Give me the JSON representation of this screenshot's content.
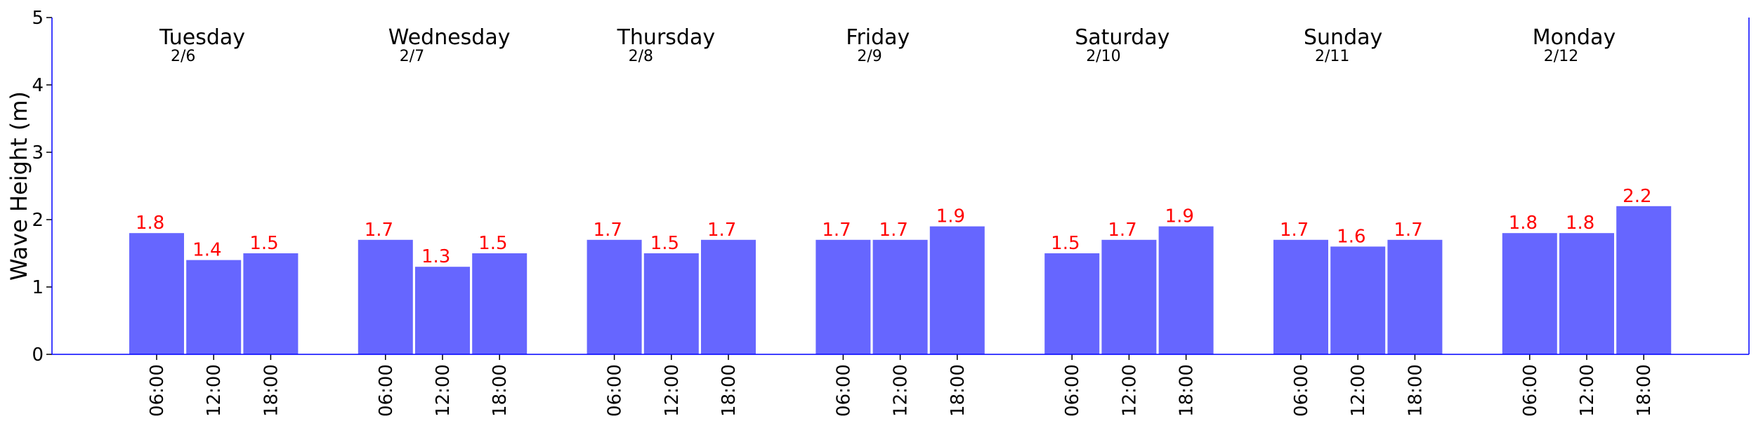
{
  "chart_data": {
    "type": "bar",
    "ylabel": "Wave Height (m)",
    "ylim": [
      0,
      5
    ],
    "yticks": [
      "0",
      "1",
      "2",
      "3",
      "4",
      "5"
    ],
    "bar_color": "#6666ff",
    "label_color": "#ff0000",
    "axis_color": "#0000ff",
    "groups": [
      {
        "day": "Tuesday",
        "date": "2/6",
        "times": [
          "06:00",
          "12:00",
          "18:00"
        ],
        "values": [
          1.8,
          1.4,
          1.5
        ],
        "labels": [
          "1.8",
          "1.4",
          "1.5"
        ]
      },
      {
        "day": "Wednesday",
        "date": "2/7",
        "times": [
          "06:00",
          "12:00",
          "18:00"
        ],
        "values": [
          1.7,
          1.3,
          1.5
        ],
        "labels": [
          "1.7",
          "1.3",
          "1.5"
        ]
      },
      {
        "day": "Thursday",
        "date": "2/8",
        "times": [
          "06:00",
          "12:00",
          "18:00"
        ],
        "values": [
          1.7,
          1.5,
          1.7
        ],
        "labels": [
          "1.7",
          "1.5",
          "1.7"
        ]
      },
      {
        "day": "Friday",
        "date": "2/9",
        "times": [
          "06:00",
          "12:00",
          "18:00"
        ],
        "values": [
          1.7,
          1.7,
          1.9
        ],
        "labels": [
          "1.7",
          "1.7",
          "1.9"
        ]
      },
      {
        "day": "Saturday",
        "date": "2/10",
        "times": [
          "06:00",
          "12:00",
          "18:00"
        ],
        "values": [
          1.5,
          1.7,
          1.9
        ],
        "labels": [
          "1.5",
          "1.7",
          "1.9"
        ]
      },
      {
        "day": "Sunday",
        "date": "2/11",
        "times": [
          "06:00",
          "12:00",
          "18:00"
        ],
        "values": [
          1.7,
          1.6,
          1.7
        ],
        "labels": [
          "1.7",
          "1.6",
          "1.7"
        ]
      },
      {
        "day": "Monday",
        "date": "2/12",
        "times": [
          "06:00",
          "12:00",
          "18:00"
        ],
        "values": [
          1.8,
          1.8,
          2.2
        ],
        "labels": [
          "1.8",
          "1.8",
          "2.2"
        ]
      }
    ]
  }
}
